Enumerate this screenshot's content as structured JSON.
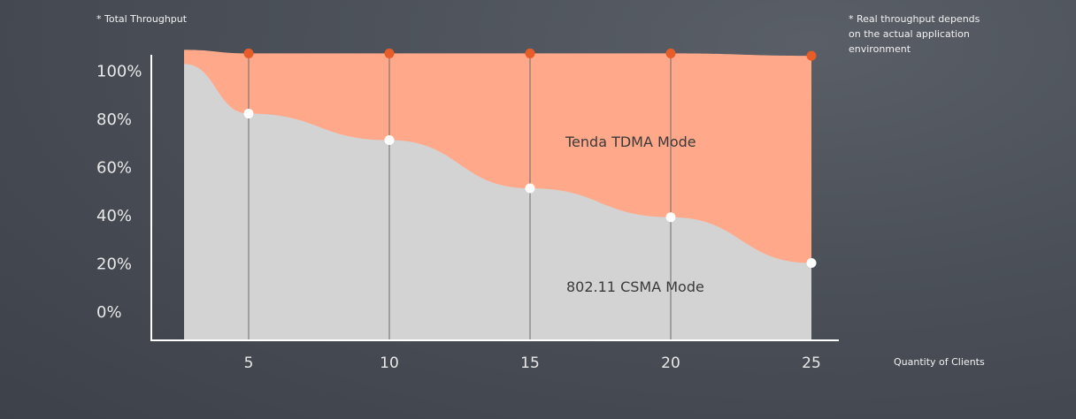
{
  "notes": {
    "total_throughput": "* Total Throughput",
    "real_throughput_line1": "* Real throughput depends",
    "real_throughput_line2": "on the actual application",
    "real_throughput_line3": "environment"
  },
  "chart_data": {
    "type": "area",
    "xlabel": "Quantity of Clients",
    "ylabel": "",
    "x": [
      5,
      10,
      15,
      20,
      25
    ],
    "ylim": [
      0,
      100
    ],
    "y_ticks": [
      "0%",
      "20%",
      "40%",
      "60%",
      "80%",
      "100%"
    ],
    "x_ticks": [
      "5",
      "10",
      "15",
      "20",
      "25"
    ],
    "series": [
      {
        "name": "Tenda TDMA  Mode",
        "values": [
          107,
          107,
          107,
          107,
          106
        ],
        "color": "#ffa88a",
        "marker_color": "#e85c2a"
      },
      {
        "name": "802.11 CSMA Mode",
        "values": [
          82,
          71,
          51,
          39,
          20
        ],
        "color": "#d3d3d3",
        "marker_color": "#ffffff"
      }
    ]
  }
}
